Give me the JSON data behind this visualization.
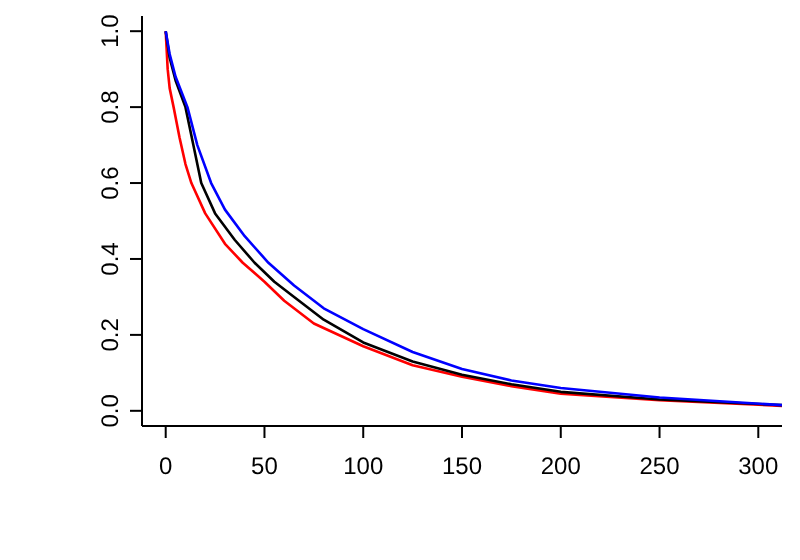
{
  "chart_data": {
    "type": "line",
    "xlim": [
      -12,
      312
    ],
    "ylim": [
      -0.04,
      1.04
    ],
    "xticks": [
      0,
      50,
      100,
      150,
      200,
      250,
      300
    ],
    "yticks": [
      {
        "value": 0,
        "label": "0.0"
      },
      {
        "value": 0.2,
        "label": "0.2"
      },
      {
        "value": 0.4,
        "label": "0.4"
      },
      {
        "value": 0.6,
        "label": "0.6"
      },
      {
        "value": 0.8,
        "label": "0.8"
      },
      {
        "value": 1,
        "label": "1.0"
      }
    ],
    "grid": false,
    "legend": false,
    "marker": "none",
    "line_style": "solid",
    "series": [
      {
        "color": "#ff0000",
        "x": [
          0,
          1,
          2,
          4,
          7,
          10,
          13,
          20,
          30,
          39,
          50,
          60,
          75,
          100,
          125,
          150,
          175,
          200,
          250,
          312
        ],
        "values": [
          1,
          0.9,
          0.85,
          0.8,
          0.72,
          0.65,
          0.6,
          0.52,
          0.44,
          0.39,
          0.34,
          0.29,
          0.23,
          0.17,
          0.12,
          0.09,
          0.065,
          0.045,
          0.028,
          0.013
        ]
      },
      {
        "color": "#000000",
        "x": [
          0,
          2,
          5,
          10,
          14,
          18,
          25,
          35,
          45,
          55,
          65,
          80,
          100,
          125,
          150,
          175,
          200,
          250,
          312
        ],
        "values": [
          1,
          0.93,
          0.87,
          0.8,
          0.7,
          0.6,
          0.52,
          0.45,
          0.39,
          0.34,
          0.3,
          0.24,
          0.18,
          0.13,
          0.095,
          0.07,
          0.05,
          0.03,
          0.015
        ]
      },
      {
        "color": "#0000ff",
        "x": [
          0,
          2,
          5,
          11,
          16,
          23,
          30,
          40,
          52,
          65,
          80,
          100,
          125,
          150,
          175,
          200,
          250,
          312
        ],
        "values": [
          1,
          0.94,
          0.88,
          0.8,
          0.7,
          0.6,
          0.53,
          0.46,
          0.39,
          0.33,
          0.27,
          0.215,
          0.155,
          0.11,
          0.08,
          0.06,
          0.035,
          0.015
        ]
      }
    ]
  }
}
